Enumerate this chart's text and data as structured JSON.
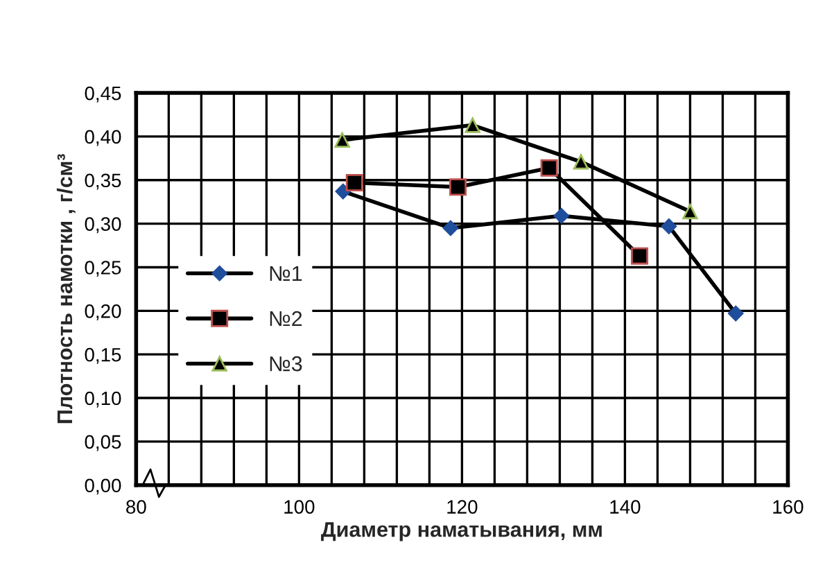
{
  "chart_data": {
    "type": "line",
    "xlabel": "Диаметр наматывания, мм",
    "ylabel": "Плотность намотки , г/см³",
    "series": [
      {
        "name": "№1",
        "color": "#1f4e9c",
        "marker": "diamond",
        "x": [
          105.4,
          118.6,
          132.2,
          145.4,
          153.6
        ],
        "values": [
          0.337,
          0.295,
          0.309,
          0.297,
          0.197
        ]
      },
      {
        "name": "№2",
        "color": "#c0504d",
        "marker": "square",
        "x": [
          106.8,
          119.5,
          130.7,
          141.8
        ],
        "values": [
          0.347,
          0.342,
          0.364,
          0.263
        ]
      },
      {
        "name": "№3",
        "color": "#9bbb59",
        "marker": "triangle",
        "x": [
          105.3,
          121.3,
          134.6,
          148.0
        ],
        "values": [
          0.396,
          0.413,
          0.371,
          0.314
        ]
      }
    ],
    "xlim": [
      80,
      160
    ],
    "ylim": [
      0,
      0.45
    ],
    "xticks": [
      80,
      {
        "value": 84,
        "label": null
      },
      {
        "value": 88,
        "label": null
      },
      {
        "value": 92,
        "label": null
      },
      {
        "value": 96,
        "label": null
      },
      100,
      {
        "value": 104,
        "label": null
      },
      {
        "value": 108,
        "label": null
      },
      {
        "value": 112,
        "label": null
      },
      {
        "value": 116,
        "label": null
      },
      120,
      {
        "value": 124,
        "label": null
      },
      {
        "value": 128,
        "label": null
      },
      {
        "value": 132,
        "label": null
      },
      {
        "value": 136,
        "label": null
      },
      140,
      {
        "value": 144,
        "label": null
      },
      {
        "value": 148,
        "label": null
      },
      {
        "value": 152,
        "label": null
      },
      {
        "value": 156,
        "label": null
      },
      160
    ],
    "yticks": [
      {
        "value": 0,
        "label": "0,00"
      },
      {
        "value": 0.05,
        "label": "0,05"
      },
      {
        "value": 0.1,
        "label": "0,10"
      },
      {
        "value": 0.15,
        "label": "0,15"
      },
      {
        "value": 0.2,
        "label": "0,20"
      },
      {
        "value": 0.25,
        "label": "0,25"
      },
      {
        "value": 0.3,
        "label": "0,30"
      },
      {
        "value": 0.35,
        "label": "0,35"
      },
      {
        "value": 0.4,
        "label": "0,40"
      },
      {
        "value": 0.45,
        "label": "0,45"
      }
    ],
    "grid": true,
    "legend": "left",
    "line_style": "solid"
  }
}
